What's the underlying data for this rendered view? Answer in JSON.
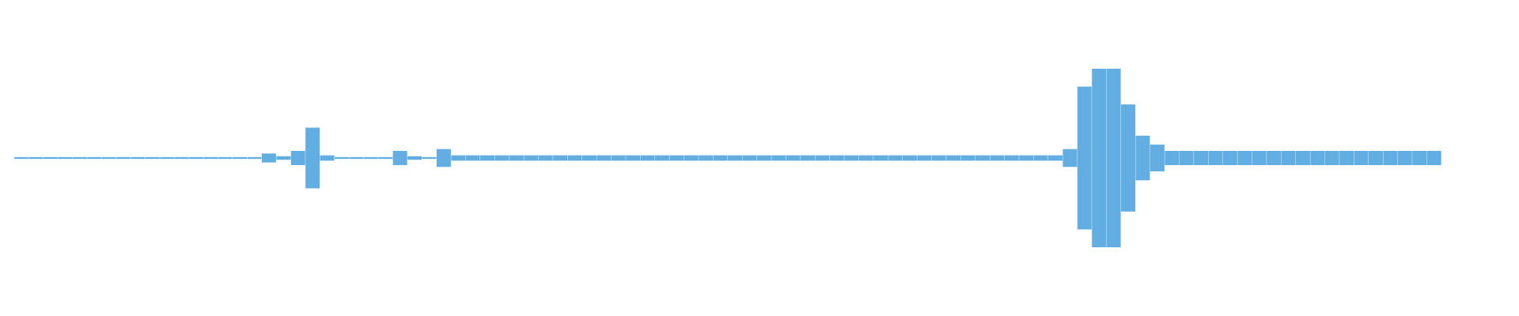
{
  "chart_data": {
    "type": "waveform",
    "color": "#62aee2",
    "values": [
      0.01,
      0.01,
      0.01,
      0.01,
      0.01,
      0.01,
      0.01,
      0.01,
      0.01,
      0.01,
      0.01,
      0.01,
      0.01,
      0.01,
      0.01,
      0.01,
      0.01,
      0.05,
      0.02,
      0.08,
      0.34,
      0.03,
      0.01,
      0.01,
      0.01,
      0.01,
      0.08,
      0.02,
      0.01,
      0.1,
      0.03,
      0.03,
      0.03,
      0.03,
      0.03,
      0.03,
      0.03,
      0.03,
      0.03,
      0.03,
      0.03,
      0.03,
      0.03,
      0.03,
      0.03,
      0.03,
      0.03,
      0.03,
      0.03,
      0.03,
      0.03,
      0.03,
      0.03,
      0.03,
      0.03,
      0.03,
      0.03,
      0.03,
      0.03,
      0.03,
      0.03,
      0.03,
      0.03,
      0.03,
      0.03,
      0.03,
      0.03,
      0.03,
      0.03,
      0.03,
      0.03,
      0.03,
      0.1,
      0.8,
      1.0,
      1.0,
      0.6,
      0.25,
      0.15,
      0.08,
      0.08,
      0.08,
      0.08,
      0.08,
      0.08,
      0.08,
      0.08,
      0.08,
      0.08,
      0.08,
      0.08,
      0.08,
      0.08,
      0.08,
      0.08,
      0.08,
      0.08,
      0.08
    ]
  }
}
